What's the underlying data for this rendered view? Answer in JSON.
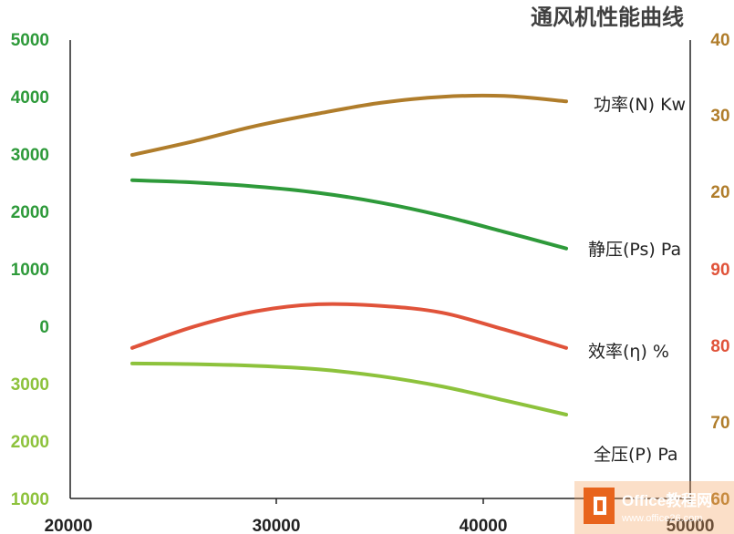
{
  "chart_data": {
    "type": "line",
    "title": "通风机性能曲线",
    "x_ticks": [
      "20000",
      "30000",
      "40000",
      "50000"
    ],
    "xlim": [
      20000,
      50000
    ],
    "axis_ticks": {
      "left_green": [
        "5000",
        "4000",
        "3000",
        "2000",
        "1000",
        "0",
        "3000",
        "2000",
        "1000"
      ],
      "right_brown": [
        "40",
        "30",
        "20"
      ],
      "right_red": [
        "90",
        "80"
      ],
      "right_lightgreen": [
        "70",
        "60"
      ]
    },
    "series": [
      {
        "name": "功率(N) Kw",
        "color": "#b07d2b",
        "points": [
          [
            23000,
            25.0
          ],
          [
            26000,
            26.8
          ],
          [
            29000,
            28.8
          ],
          [
            32000,
            30.4
          ],
          [
            35000,
            31.8
          ],
          [
            38000,
            32.6
          ],
          [
            41000,
            32.7
          ],
          [
            44000,
            32.0
          ]
        ]
      },
      {
        "name": "静压(Ps) Pa",
        "color": "#2e9a3a",
        "points": [
          [
            23000,
            2560
          ],
          [
            26000,
            2520
          ],
          [
            29000,
            2450
          ],
          [
            32000,
            2340
          ],
          [
            35000,
            2170
          ],
          [
            38000,
            1940
          ],
          [
            41000,
            1660
          ],
          [
            44000,
            1370
          ]
        ]
      },
      {
        "name": "效率(η) %",
        "color": "#e0533a",
        "points": [
          [
            23000,
            80.5
          ],
          [
            26000,
            83.3
          ],
          [
            29000,
            85.3
          ],
          [
            32000,
            86.2
          ],
          [
            35000,
            86.0
          ],
          [
            38000,
            85.1
          ],
          [
            41000,
            82.9
          ],
          [
            44000,
            80.5
          ]
        ]
      },
      {
        "name": "全压(P) Pa",
        "color": "#8dc23c",
        "points": [
          [
            23000,
            3350
          ],
          [
            26000,
            3340
          ],
          [
            29000,
            3310
          ],
          [
            32000,
            3250
          ],
          [
            35000,
            3130
          ],
          [
            38000,
            2950
          ],
          [
            41000,
            2710
          ],
          [
            44000,
            2460
          ]
        ]
      }
    ]
  },
  "watermark": {
    "text": "Office教程网",
    "url": "www.office26.com"
  }
}
